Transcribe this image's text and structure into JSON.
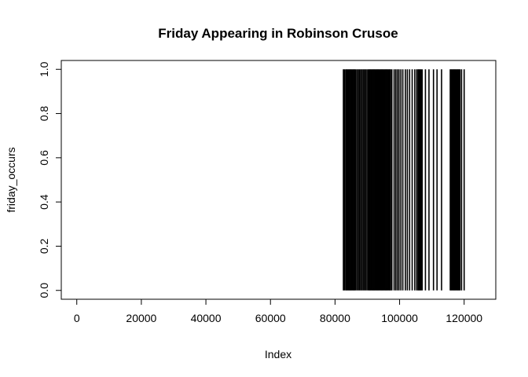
{
  "chart_data": {
    "type": "bar",
    "title": "Friday Appearing in Robinson Crusoe",
    "xlabel": "Index",
    "ylabel": "friday_occurs",
    "xlim": [
      -4800,
      129800
    ],
    "ylim": [
      -0.04,
      1.04
    ],
    "x_ticks": [
      0,
      20000,
      40000,
      60000,
      80000,
      100000,
      120000
    ],
    "x_tick_labels": [
      "0",
      "20000",
      "40000",
      "60000",
      "80000",
      "100000",
      "120000"
    ],
    "y_ticks": [
      0.0,
      0.2,
      0.4,
      0.6,
      0.8,
      1.0
    ],
    "y_tick_labels": [
      "0.0",
      "0.2",
      "0.4",
      "0.6",
      "0.8",
      "1.0"
    ],
    "grid": false,
    "legend": "none",
    "bar_color": "#000000",
    "series": [
      {
        "values_description": "friday_occurs is 0 everywhere except the word indices listed below, where it is 1",
        "occurrence_indices": [
          82600,
          82900,
          83300,
          83600,
          83900,
          84200,
          84500,
          84800,
          85100,
          85400,
          85700,
          86000,
          86300,
          86700,
          87100,
          87500,
          87900,
          88300,
          88700,
          89100,
          89500,
          89900,
          90300,
          90600,
          90900,
          91200,
          91500,
          91800,
          92100,
          92400,
          92700,
          93000,
          93300,
          93600,
          93900,
          94200,
          94500,
          94800,
          95100,
          95400,
          95700,
          96000,
          96300,
          96600,
          96900,
          97200,
          97600,
          98300,
          98800,
          99300,
          99800,
          100400,
          101000,
          101800,
          102400,
          103100,
          103900,
          104700,
          105300,
          105700,
          106000,
          106300,
          106600,
          107000,
          108000,
          109100,
          110500,
          111600,
          113000,
          115700,
          116000,
          116300,
          116600,
          116900,
          117200,
          117500,
          117800,
          118100,
          118400,
          118700,
          119200,
          120000
        ]
      }
    ]
  }
}
